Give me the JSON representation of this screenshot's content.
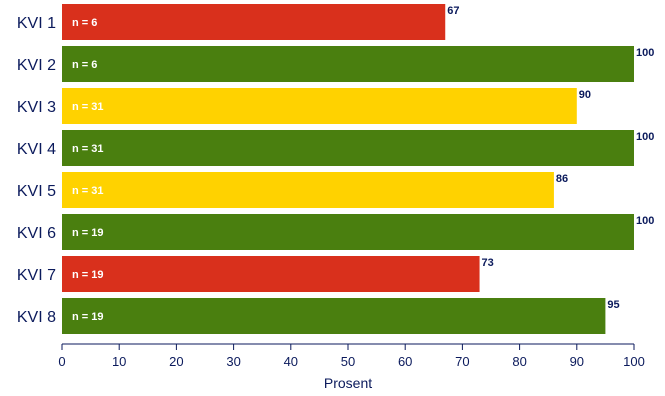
{
  "chart_data": {
    "type": "bar",
    "orientation": "horizontal",
    "categories": [
      "KVI 1",
      "KVI 2",
      "KVI 3",
      "KVI 4",
      "KVI 5",
      "KVI 6",
      "KVI 7",
      "KVI 8"
    ],
    "values": [
      67,
      100,
      90,
      100,
      86,
      100,
      73,
      95
    ],
    "value_labels": [
      "67",
      "100",
      "90",
      "100",
      "86",
      "100",
      "73",
      "95"
    ],
    "n_labels": [
      "n = 6",
      "n = 6",
      "n = 31",
      "n = 31",
      "n = 31",
      "n = 19",
      "n = 19",
      "n = 19"
    ],
    "bar_colors": [
      "#d9301c",
      "#4a7f0f",
      "#ffd200",
      "#4a7f0f",
      "#ffd200",
      "#4a7f0f",
      "#d9301c",
      "#4a7f0f"
    ],
    "xlim": [
      0,
      100
    ],
    "xticks": [
      0,
      10,
      20,
      30,
      40,
      50,
      60,
      70,
      80,
      90,
      100
    ],
    "xlabel": "Prosent",
    "ylabel": "",
    "title": "",
    "grid": false,
    "legend": false
  },
  "colors": {
    "axis": "#0b1a5c",
    "red": "#d9301c",
    "green": "#4a7f0f",
    "yellow": "#ffd200"
  }
}
